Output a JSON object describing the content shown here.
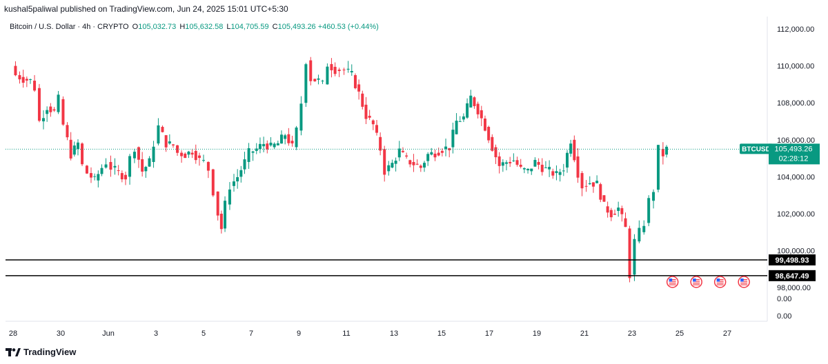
{
  "publisher": "kushal5paliwal published on TradingView.com, Jun 24, 2025 15:01 UTC+5:30",
  "legend": {
    "symbol": "Bitcoin / U.S. Dollar · 4h · CRYPTO",
    "open_label": "O",
    "open": "105,032.73",
    "high_label": "H",
    "high": "105,632.58",
    "low_label": "L",
    "low": "104,705.59",
    "close_label": "C",
    "close": "105,493.26",
    "change": "+460.53 (+0.44%)"
  },
  "price_badge": {
    "ticker": "BTCUSD",
    "price": "105,493.26",
    "countdown": "02:28:12"
  },
  "lines": [
    {
      "label": "99,498.93",
      "value": 99498.93
    },
    {
      "label": "98,647.49",
      "value": 98647.49
    }
  ],
  "footer": {
    "brand": "TradingView"
  },
  "colors": {
    "up": "#089981",
    "down": "#f23645",
    "last": "#089981"
  },
  "chart_data": {
    "type": "candlestick",
    "interval": "4h",
    "ylim": [
      97700,
      112700
    ],
    "y_ticks": [
      "112,000.00",
      "110,000.00",
      "108,000.00",
      "106,000.00",
      "104,000.00",
      "102,000.00",
      "100,000.00",
      "98,000.00"
    ],
    "y_ticks_values": [
      112000,
      110000,
      108000,
      106000,
      104000,
      102000,
      100000,
      98000
    ],
    "extra_ticks": [
      "0.00",
      "0.00"
    ],
    "x_ticks": [
      "28",
      "30",
      "Jun",
      "3",
      "5",
      "7",
      "9",
      "11",
      "13",
      "15",
      "17",
      "19",
      "21",
      "23",
      "25",
      "27"
    ],
    "x_tick_days": [
      0,
      2,
      4,
      6,
      8,
      10,
      12,
      14,
      16,
      18,
      20,
      22,
      24,
      26,
      28,
      30
    ],
    "events": [
      "us-flag-icon",
      "us-flag-icon",
      "us-flag-icon",
      "us-flag-icon"
    ],
    "event_days": [
      27.7,
      28.7,
      29.7,
      30.7
    ],
    "close_series": [
      [
        0,
        110000
      ],
      [
        0.2,
        109500
      ],
      [
        0.5,
        109300
      ],
      [
        0.8,
        109200
      ],
      [
        1.0,
        108800
      ],
      [
        1.2,
        107000
      ],
      [
        1.5,
        107800
      ],
      [
        1.8,
        107500
      ],
      [
        2.0,
        108200
      ],
      [
        2.2,
        106800
      ],
      [
        2.5,
        105200
      ],
      [
        2.8,
        105800
      ],
      [
        3.0,
        104600
      ],
      [
        3.2,
        104200
      ],
      [
        3.5,
        103800
      ],
      [
        3.8,
        104500
      ],
      [
        4.0,
        104800
      ],
      [
        4.2,
        104500
      ],
      [
        4.5,
        104200
      ],
      [
        4.8,
        104000
      ],
      [
        5.0,
        105000
      ],
      [
        5.2,
        105600
      ],
      [
        5.5,
        104300
      ],
      [
        5.8,
        104800
      ],
      [
        6.0,
        105800
      ],
      [
        6.2,
        106700
      ],
      [
        6.5,
        105800
      ],
      [
        6.8,
        105700
      ],
      [
        7.0,
        105300
      ],
      [
        7.3,
        105200
      ],
      [
        7.6,
        105400
      ],
      [
        7.9,
        104900
      ],
      [
        8.1,
        104800
      ],
      [
        8.3,
        104400
      ],
      [
        8.5,
        103200
      ],
      [
        8.7,
        102000
      ],
      [
        8.8,
        101200
      ],
      [
        9.0,
        102500
      ],
      [
        9.2,
        103500
      ],
      [
        9.5,
        104000
      ],
      [
        9.8,
        104800
      ],
      [
        10.0,
        105300
      ],
      [
        10.3,
        105500
      ],
      [
        10.6,
        105800
      ],
      [
        10.9,
        105600
      ],
      [
        11.2,
        105800
      ],
      [
        11.5,
        106300
      ],
      [
        11.8,
        105600
      ],
      [
        12.0,
        106500
      ],
      [
        12.2,
        108000
      ],
      [
        12.4,
        110300
      ],
      [
        12.6,
        109300
      ],
      [
        12.9,
        109200
      ],
      [
        13.1,
        109000
      ],
      [
        13.3,
        110100
      ],
      [
        13.6,
        109800
      ],
      [
        14.0,
        109800
      ],
      [
        14.3,
        109500
      ],
      [
        14.6,
        108500
      ],
      [
        14.9,
        107300
      ],
      [
        15.2,
        106800
      ],
      [
        15.5,
        105500
      ],
      [
        15.7,
        104300
      ],
      [
        16.0,
        104700
      ],
      [
        16.3,
        105400
      ],
      [
        16.6,
        104900
      ],
      [
        16.9,
        104700
      ],
      [
        17.2,
        104500
      ],
      [
        17.5,
        105200
      ],
      [
        17.8,
        105300
      ],
      [
        18.1,
        105500
      ],
      [
        18.4,
        105600
      ],
      [
        18.7,
        107000
      ],
      [
        19.0,
        107200
      ],
      [
        19.3,
        108300
      ],
      [
        19.6,
        107600
      ],
      [
        19.9,
        106700
      ],
      [
        20.2,
        105600
      ],
      [
        20.5,
        104600
      ],
      [
        20.8,
        104800
      ],
      [
        21.1,
        104900
      ],
      [
        21.4,
        104400
      ],
      [
        21.7,
        104300
      ],
      [
        22.0,
        104800
      ],
      [
        22.3,
        104500
      ],
      [
        22.6,
        104300
      ],
      [
        22.9,
        104100
      ],
      [
        23.2,
        104500
      ],
      [
        23.5,
        106000
      ],
      [
        23.8,
        104200
      ],
      [
        24.0,
        103500
      ],
      [
        24.3,
        103700
      ],
      [
        24.6,
        103600
      ],
      [
        24.9,
        102400
      ],
      [
        25.2,
        102000
      ],
      [
        25.5,
        102300
      ],
      [
        25.8,
        101200
      ],
      [
        26.0,
        98700
      ],
      [
        26.2,
        100500
      ],
      [
        26.4,
        101000
      ],
      [
        26.6,
        101500
      ],
      [
        26.8,
        102700
      ],
      [
        27.0,
        103300
      ],
      [
        27.2,
        105500
      ],
      [
        27.4,
        105200
      ],
      [
        27.5,
        105493
      ]
    ]
  }
}
